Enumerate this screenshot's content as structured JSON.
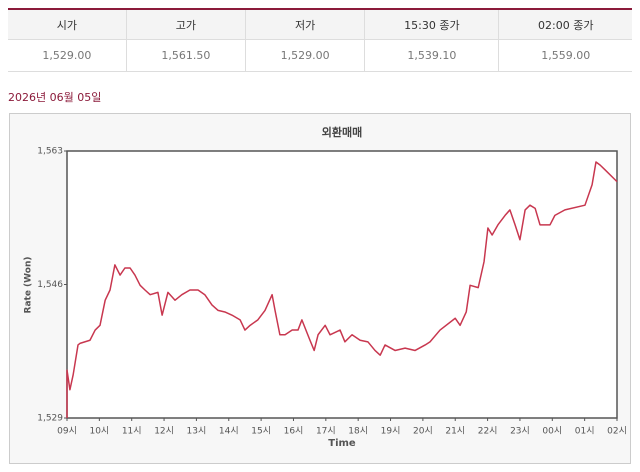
{
  "table": {
    "header": [
      "시가",
      "고가",
      "저가",
      "15:30 종가",
      "02:00 종가"
    ],
    "rows": [
      [
        "1,529.00",
        "1,561.50",
        "1,529.00",
        "1,539.10",
        "1,559.00"
      ]
    ]
  },
  "date": "2026년 06월 05일",
  "chart_data": {
    "type": "line",
    "title": "외환매매",
    "y_label": "Rate (Won)",
    "x_label": "Time",
    "xlim": [
      9,
      26
    ],
    "xticks": [
      {
        "value": 9,
        "label": "09시"
      },
      {
        "value": 10,
        "label": "10시"
      },
      {
        "value": 11,
        "label": "11시"
      },
      {
        "value": 12,
        "label": "12시"
      },
      {
        "value": 13,
        "label": "13시"
      },
      {
        "value": 14,
        "label": "14시"
      },
      {
        "value": 15,
        "label": "15시"
      },
      {
        "value": 16,
        "label": "16시"
      },
      {
        "value": 17,
        "label": "17시"
      },
      {
        "value": 18,
        "label": "18시"
      },
      {
        "value": 19,
        "label": "19시"
      },
      {
        "value": 20,
        "label": "20시"
      },
      {
        "value": 21,
        "label": "21시"
      },
      {
        "value": 22,
        "label": "22시"
      },
      {
        "value": 23,
        "label": "23시"
      },
      {
        "value": 24,
        "label": "00시"
      },
      {
        "value": 25,
        "label": "01시"
      },
      {
        "value": 26,
        "label": "02시"
      }
    ],
    "ylim": [
      1529,
      1563
    ],
    "yticks": [
      {
        "value": 1529,
        "label": "1,529"
      },
      {
        "value": 1546,
        "label": "1,546"
      },
      {
        "value": 1563,
        "label": "1,563"
      }
    ],
    "series": [
      {
        "color": "#c8374f",
        "x": [
          9.0,
          9.0,
          9.09,
          9.19,
          9.34,
          9.4,
          9.71,
          9.87,
          10.02,
          10.18,
          10.33,
          10.48,
          10.64,
          10.79,
          10.95,
          11.1,
          11.26,
          11.41,
          11.57,
          11.81,
          11.94,
          12.12,
          12.34,
          12.55,
          12.8,
          13.05,
          13.26,
          13.48,
          13.67,
          13.88,
          14.1,
          14.35,
          14.5,
          14.66,
          14.9,
          15.12,
          15.34,
          15.43,
          15.58,
          15.74,
          15.96,
          16.14,
          16.26,
          16.51,
          16.64,
          16.76,
          16.98,
          17.13,
          17.44,
          17.59,
          17.81,
          18.06,
          18.3,
          18.52,
          18.68,
          18.83,
          19.14,
          19.45,
          19.76,
          20.07,
          20.22,
          20.53,
          21.0,
          21.15,
          21.34,
          21.46,
          21.71,
          21.89,
          22.01,
          22.14,
          22.32,
          22.54,
          22.69,
          22.85,
          23.0,
          23.16,
          23.31,
          23.47,
          23.62,
          23.93,
          24.08,
          24.39,
          25.01,
          25.23,
          25.35,
          25.48,
          25.63,
          26.0
        ],
        "values": [
          1529.0,
          1535.1,
          1532.6,
          1534.5,
          1538.3,
          1538.5,
          1538.9,
          1540.2,
          1540.8,
          1544.0,
          1545.3,
          1548.5,
          1547.2,
          1548.1,
          1548.1,
          1547.2,
          1545.9,
          1545.3,
          1544.7,
          1545.0,
          1542.1,
          1545.0,
          1544.0,
          1544.7,
          1545.3,
          1545.3,
          1544.7,
          1543.4,
          1542.7,
          1542.5,
          1542.1,
          1541.5,
          1540.2,
          1540.8,
          1541.5,
          1542.7,
          1544.7,
          1542.7,
          1539.6,
          1539.6,
          1540.2,
          1540.2,
          1541.5,
          1538.9,
          1537.6,
          1539.6,
          1540.8,
          1539.6,
          1540.2,
          1538.7,
          1539.6,
          1538.9,
          1538.7,
          1537.6,
          1537.0,
          1538.3,
          1537.6,
          1537.9,
          1537.6,
          1538.3,
          1538.7,
          1540.2,
          1541.7,
          1540.8,
          1542.5,
          1545.9,
          1545.6,
          1548.9,
          1553.2,
          1552.3,
          1553.6,
          1554.8,
          1555.5,
          1553.6,
          1551.7,
          1555.5,
          1556.1,
          1555.7,
          1553.6,
          1553.6,
          1554.8,
          1555.5,
          1556.1,
          1558.7,
          1561.6,
          1561.2,
          1560.6,
          1559.1
        ]
      }
    ]
  }
}
